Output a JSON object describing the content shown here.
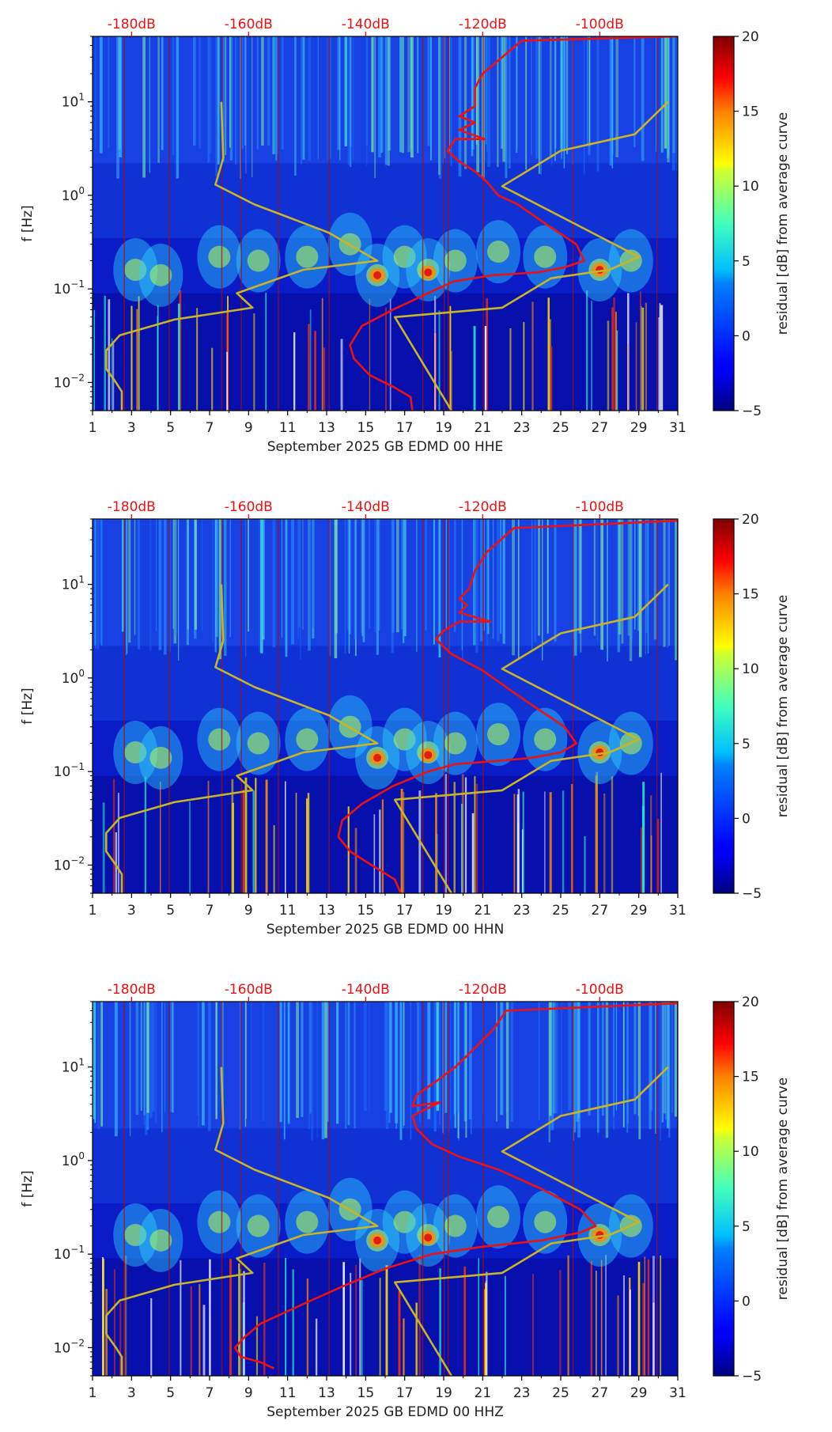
{
  "chart_data": [
    {
      "type": "heatmap",
      "title": "",
      "xlabel": "September 2025 GB EDMD 00 HHE",
      "ylabel": "f [Hz]",
      "x_ticks": [
        "1",
        "3",
        "5",
        "7",
        "9",
        "11",
        "13",
        "15",
        "17",
        "19",
        "21",
        "23",
        "25",
        "27",
        "29",
        "31"
      ],
      "xlim": [
        1,
        31
      ],
      "y_ticks": [
        {
          "value": 0.01,
          "base": "10",
          "exp": "−2"
        },
        {
          "value": 0.1,
          "base": "10",
          "exp": "−1"
        },
        {
          "value": 1,
          "base": "10",
          "exp": "0"
        },
        {
          "value": 10,
          "base": "10",
          "exp": "1"
        }
      ],
      "ylim": [
        0.005,
        50
      ],
      "top_ticks": [
        "-180dB",
        "-160dB",
        "-140dB",
        "-120dB",
        "-100dB"
      ],
      "colorbar": {
        "label": "residual [dB] from average curve",
        "ticks": [
          "−5",
          "0",
          "5",
          "10",
          "15",
          "20"
        ],
        "range": [
          -5,
          20
        ]
      },
      "series": [
        {
          "name": "average-psd-curve",
          "color": "#ee1111",
          "points": [
            [
              17.4,
              0.005
            ],
            [
              17.3,
              0.007
            ],
            [
              16.4,
              0.009
            ],
            [
              15.2,
              0.012
            ],
            [
              14.4,
              0.018
            ],
            [
              14.2,
              0.025
            ],
            [
              14.8,
              0.04
            ],
            [
              16.4,
              0.06
            ],
            [
              18.2,
              0.09
            ],
            [
              19.5,
              0.12
            ],
            [
              21.5,
              0.14
            ],
            [
              23.8,
              0.15
            ],
            [
              25.2,
              0.17
            ],
            [
              26.2,
              0.2
            ],
            [
              25.8,
              0.3
            ],
            [
              24.2,
              0.5
            ],
            [
              22.8,
              0.8
            ],
            [
              21.8,
              1.0
            ],
            [
              21.2,
              1.4
            ],
            [
              20.6,
              1.8
            ],
            [
              19.8,
              2.3
            ],
            [
              19.2,
              3.0
            ],
            [
              19.6,
              4.0
            ],
            [
              21.1,
              4.0
            ],
            [
              19.8,
              5.0
            ],
            [
              20.6,
              6.0
            ],
            [
              19.8,
              7.0
            ],
            [
              20.6,
              9.0
            ],
            [
              20.6,
              14.0
            ],
            [
              21.0,
              20.0
            ],
            [
              22.0,
              30.0
            ],
            [
              23.0,
              45.0
            ],
            [
              31.0,
              50.0
            ]
          ]
        },
        {
          "name": "low-noise-model",
          "color": "#c8b428",
          "points": [
            [
              2.5,
              0.005
            ],
            [
              2.5,
              0.008
            ],
            [
              2.2,
              0.01
            ],
            [
              1.7,
              0.014
            ],
            [
              1.7,
              0.022
            ],
            [
              2.4,
              0.032
            ],
            [
              5.2,
              0.047
            ],
            [
              9.2,
              0.063
            ],
            [
              8.4,
              0.09
            ],
            [
              11.8,
              0.16
            ],
            [
              15.6,
              0.2
            ],
            [
              13.1,
              0.4
            ],
            [
              9.3,
              0.8
            ],
            [
              7.3,
              1.3
            ],
            [
              7.7,
              2.5
            ],
            [
              7.6,
              10.0
            ]
          ]
        },
        {
          "name": "high-noise-model",
          "color": "#c8b428",
          "points": [
            [
              19.4,
              0.005
            ],
            [
              16.5,
              0.05
            ],
            [
              22.0,
              0.063
            ],
            [
              24.5,
              0.13
            ],
            [
              27.5,
              0.16
            ],
            [
              29.0,
              0.22
            ],
            [
              22.0,
              1.25
            ],
            [
              25.0,
              3.0
            ],
            [
              28.8,
              4.5
            ],
            [
              30.5,
              10.0
            ]
          ]
        }
      ]
    },
    {
      "type": "heatmap",
      "title": "",
      "xlabel": "September 2025 GB EDMD 00 HHN",
      "ylabel": "f [Hz]",
      "x_ticks": [
        "1",
        "3",
        "5",
        "7",
        "9",
        "11",
        "13",
        "15",
        "17",
        "19",
        "21",
        "23",
        "25",
        "27",
        "29",
        "31"
      ],
      "xlim": [
        1,
        31
      ],
      "y_ticks": [
        {
          "value": 0.01,
          "base": "10",
          "exp": "−2"
        },
        {
          "value": 0.1,
          "base": "10",
          "exp": "−1"
        },
        {
          "value": 1,
          "base": "10",
          "exp": "0"
        },
        {
          "value": 10,
          "base": "10",
          "exp": "1"
        }
      ],
      "ylim": [
        0.005,
        50
      ],
      "top_ticks": [
        "-180dB",
        "-160dB",
        "-140dB",
        "-120dB",
        "-100dB"
      ],
      "colorbar": {
        "label": "residual [dB] from average curve",
        "ticks": [
          "−5",
          "0",
          "5",
          "10",
          "15",
          "20"
        ],
        "range": [
          -5,
          20
        ]
      },
      "series": [
        {
          "name": "average-psd-curve",
          "color": "#ee1111",
          "points": [
            [
              16.8,
              0.005
            ],
            [
              16.5,
              0.007
            ],
            [
              15.3,
              0.01
            ],
            [
              14.2,
              0.014
            ],
            [
              13.6,
              0.02
            ],
            [
              13.8,
              0.03
            ],
            [
              14.8,
              0.045
            ],
            [
              16.4,
              0.07
            ],
            [
              18.2,
              0.1
            ],
            [
              19.6,
              0.12
            ],
            [
              21.8,
              0.13
            ],
            [
              23.5,
              0.14
            ],
            [
              25.0,
              0.16
            ],
            [
              25.8,
              0.2
            ],
            [
              25.2,
              0.3
            ],
            [
              23.6,
              0.5
            ],
            [
              22.2,
              0.8
            ],
            [
              21.0,
              1.2
            ],
            [
              19.4,
              1.8
            ],
            [
              18.6,
              2.6
            ],
            [
              19.0,
              3.2
            ],
            [
              19.8,
              4.0
            ],
            [
              21.4,
              4.0
            ],
            [
              19.8,
              5.0
            ],
            [
              20.2,
              6.0
            ],
            [
              19.8,
              7.0
            ],
            [
              20.3,
              9.0
            ],
            [
              20.6,
              14.0
            ],
            [
              21.2,
              22.0
            ],
            [
              22.6,
              40.0
            ],
            [
              31.0,
              48.0
            ]
          ]
        },
        {
          "name": "low-noise-model",
          "color": "#c8b428",
          "points": [
            [
              2.5,
              0.005
            ],
            [
              2.5,
              0.008
            ],
            [
              2.2,
              0.01
            ],
            [
              1.7,
              0.014
            ],
            [
              1.7,
              0.022
            ],
            [
              2.4,
              0.032
            ],
            [
              5.2,
              0.047
            ],
            [
              9.2,
              0.063
            ],
            [
              8.4,
              0.09
            ],
            [
              11.8,
              0.16
            ],
            [
              15.6,
              0.2
            ],
            [
              13.1,
              0.4
            ],
            [
              9.3,
              0.8
            ],
            [
              7.3,
              1.3
            ],
            [
              7.7,
              2.5
            ],
            [
              7.6,
              10.0
            ]
          ]
        },
        {
          "name": "high-noise-model",
          "color": "#c8b428",
          "points": [
            [
              19.4,
              0.005
            ],
            [
              16.5,
              0.05
            ],
            [
              22.0,
              0.063
            ],
            [
              24.5,
              0.13
            ],
            [
              27.5,
              0.16
            ],
            [
              29.0,
              0.22
            ],
            [
              22.0,
              1.25
            ],
            [
              25.0,
              3.0
            ],
            [
              28.8,
              4.5
            ],
            [
              30.5,
              10.0
            ]
          ]
        }
      ]
    },
    {
      "type": "heatmap",
      "title": "",
      "xlabel": "September 2025 GB EDMD 00 HHZ",
      "ylabel": "f [Hz]",
      "x_ticks": [
        "1",
        "3",
        "5",
        "7",
        "9",
        "11",
        "13",
        "15",
        "17",
        "19",
        "21",
        "23",
        "25",
        "27",
        "29",
        "31"
      ],
      "xlim": [
        1,
        31
      ],
      "y_ticks": [
        {
          "value": 0.01,
          "base": "10",
          "exp": "−2"
        },
        {
          "value": 0.1,
          "base": "10",
          "exp": "−1"
        },
        {
          "value": 1,
          "base": "10",
          "exp": "0"
        },
        {
          "value": 10,
          "base": "10",
          "exp": "1"
        }
      ],
      "ylim": [
        0.005,
        50
      ],
      "top_ticks": [
        "-180dB",
        "-160dB",
        "-140dB",
        "-120dB",
        "-100dB"
      ],
      "colorbar": {
        "label": "residual [dB] from average curve",
        "ticks": [
          "−5",
          "0",
          "5",
          "10",
          "15",
          "20"
        ],
        "range": [
          -5,
          20
        ]
      },
      "series": [
        {
          "name": "average-psd-curve",
          "color": "#ee1111",
          "points": [
            [
              10.3,
              0.006
            ],
            [
              9.6,
              0.007
            ],
            [
              8.6,
              0.008
            ],
            [
              8.3,
              0.01
            ],
            [
              8.8,
              0.013
            ],
            [
              9.6,
              0.018
            ],
            [
              11.6,
              0.028
            ],
            [
              13.8,
              0.045
            ],
            [
              16.0,
              0.07
            ],
            [
              18.4,
              0.1
            ],
            [
              21.0,
              0.12
            ],
            [
              24.0,
              0.14
            ],
            [
              26.0,
              0.17
            ],
            [
              26.8,
              0.2
            ],
            [
              26.0,
              0.3
            ],
            [
              24.0,
              0.5
            ],
            [
              21.8,
              0.8
            ],
            [
              19.8,
              1.1
            ],
            [
              18.4,
              1.5
            ],
            [
              17.6,
              2.2
            ],
            [
              17.4,
              3.0
            ],
            [
              18.8,
              4.2
            ],
            [
              17.4,
              3.8
            ],
            [
              17.6,
              5.0
            ],
            [
              18.6,
              7.0
            ],
            [
              19.6,
              10.0
            ],
            [
              20.6,
              16.0
            ],
            [
              21.6,
              26.0
            ],
            [
              22.2,
              40.0
            ],
            [
              31.0,
              48.0
            ]
          ]
        },
        {
          "name": "low-noise-model",
          "color": "#c8b428",
          "points": [
            [
              2.5,
              0.005
            ],
            [
              2.5,
              0.008
            ],
            [
              2.2,
              0.01
            ],
            [
              1.7,
              0.014
            ],
            [
              1.7,
              0.022
            ],
            [
              2.4,
              0.032
            ],
            [
              5.2,
              0.047
            ],
            [
              9.2,
              0.063
            ],
            [
              8.4,
              0.09
            ],
            [
              11.8,
              0.16
            ],
            [
              15.6,
              0.2
            ],
            [
              13.1,
              0.4
            ],
            [
              9.3,
              0.8
            ],
            [
              7.3,
              1.3
            ],
            [
              7.7,
              2.5
            ],
            [
              7.6,
              10.0
            ]
          ]
        },
        {
          "name": "high-noise-model",
          "color": "#c8b428",
          "points": [
            [
              19.4,
              0.005
            ],
            [
              16.5,
              0.05
            ],
            [
              22.0,
              0.063
            ],
            [
              24.5,
              0.13
            ],
            [
              27.5,
              0.16
            ],
            [
              29.0,
              0.22
            ],
            [
              22.0,
              1.25
            ],
            [
              25.0,
              3.0
            ],
            [
              28.8,
              4.5
            ],
            [
              30.5,
              10.0
            ]
          ]
        }
      ]
    }
  ]
}
